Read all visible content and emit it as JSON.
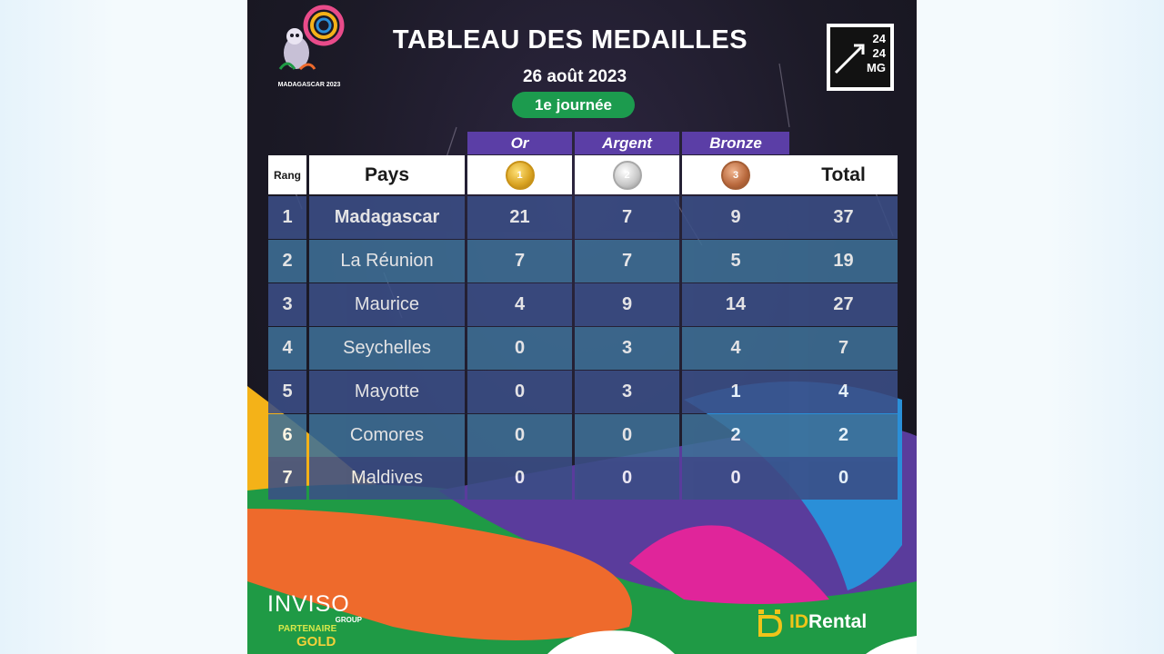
{
  "header": {
    "title": "TABLEAU DES MEDAILLES",
    "date": "26 août 2023",
    "day_label": "1e journée",
    "event_logo_caption": "MADAGASCAR 2023",
    "brand_logo_lines": [
      "24",
      "24",
      "MG"
    ]
  },
  "categories": {
    "gold": "Or",
    "silver": "Argent",
    "bronze": "Bronze"
  },
  "columns": {
    "rank": "Rang",
    "country": "Pays",
    "total": "Total",
    "gold_medal_number": "1",
    "silver_medal_number": "2",
    "bronze_medal_number": "3"
  },
  "table": {
    "rows": [
      {
        "rank": "1",
        "country": "Madagascar",
        "gold": "21",
        "silver": "7",
        "bronze": "9",
        "total": "37"
      },
      {
        "rank": "2",
        "country": "La Réunion",
        "gold": "7",
        "silver": "7",
        "bronze": "5",
        "total": "19"
      },
      {
        "rank": "3",
        "country": "Maurice",
        "gold": "4",
        "silver": "9",
        "bronze": "14",
        "total": "27"
      },
      {
        "rank": "4",
        "country": "Seychelles",
        "gold": "0",
        "silver": "3",
        "bronze": "4",
        "total": "7"
      },
      {
        "rank": "5",
        "country": "Mayotte",
        "gold": "0",
        "silver": "3",
        "bronze": "1",
        "total": "4"
      },
      {
        "rank": "6",
        "country": "Comores",
        "gold": "0",
        "silver": "0",
        "bronze": "2",
        "total": "2"
      },
      {
        "rank": "7",
        "country": "Maldives",
        "gold": "0",
        "silver": "0",
        "bronze": "0",
        "total": "0"
      }
    ]
  },
  "sponsors": {
    "left_name": "INVISO",
    "left_group": "GROUP",
    "left_partner": "PARTENAIRE",
    "left_tier": "GOLD",
    "right_prefix": "ID",
    "right_name": "Rental"
  },
  "colors": {
    "category_band": "#5b3ea6",
    "badge_green": "#1c9b4e",
    "row_dark": "#3b4e86",
    "row_light": "#3e6f96"
  }
}
